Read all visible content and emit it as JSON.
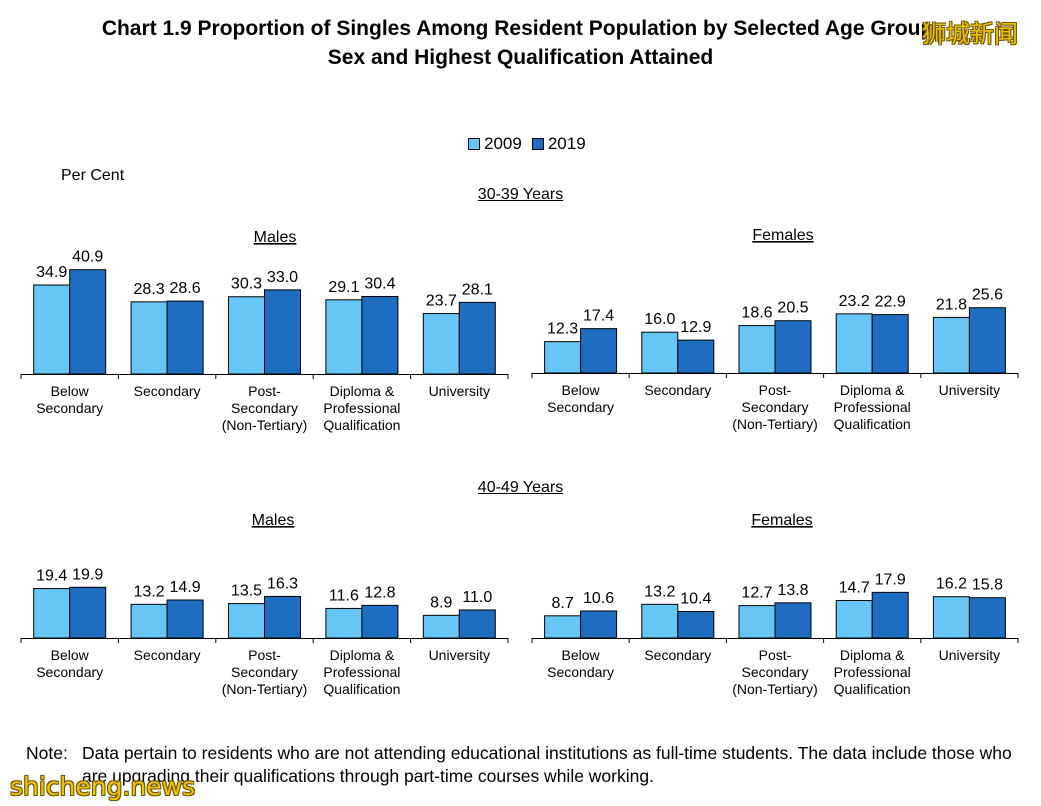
{
  "title_line1": "Chart 1.9  Proportion of Singles Among Resident Population by Selected Age Group,",
  "title_line2": "Sex and Highest Qualification Attained",
  "legend": [
    "2009",
    "2019"
  ],
  "ylabel": "Per Cent",
  "age_groups": [
    "30-39 Years",
    "40-49 Years"
  ],
  "colors": {
    "2009": "#66c6f5",
    "2019": "#1f6dc0"
  },
  "chart_data": [
    {
      "type": "bar",
      "age_group": "30-39 Years",
      "title": "Males",
      "categories": [
        "Below Secondary",
        "Secondary",
        "Post-Secondary (Non-Tertiary)",
        "Diploma & Professional Qualification",
        "University"
      ],
      "series": [
        {
          "name": "2009",
          "values": [
            34.9,
            28.3,
            30.3,
            29.1,
            23.7
          ]
        },
        {
          "name": "2019",
          "values": [
            40.9,
            28.6,
            33.0,
            30.4,
            28.1
          ]
        }
      ]
    },
    {
      "type": "bar",
      "age_group": "30-39 Years",
      "title": "Females",
      "categories": [
        "Below Secondary",
        "Secondary",
        "Post-Secondary (Non-Tertiary)",
        "Diploma & Professional Qualification",
        "University"
      ],
      "series": [
        {
          "name": "2009",
          "values": [
            12.3,
            16.0,
            18.6,
            23.2,
            21.8
          ]
        },
        {
          "name": "2019",
          "values": [
            17.4,
            12.9,
            20.5,
            22.9,
            25.6
          ]
        }
      ]
    },
    {
      "type": "bar",
      "age_group": "40-49 Years",
      "title": "Males",
      "categories": [
        "Below Secondary",
        "Secondary",
        "Post-Secondary (Non-Tertiary)",
        "Diploma & Professional Qualification",
        "University"
      ],
      "series": [
        {
          "name": "2009",
          "values": [
            19.4,
            13.2,
            13.5,
            11.6,
            8.9
          ]
        },
        {
          "name": "2019",
          "values": [
            19.9,
            14.9,
            16.3,
            12.8,
            11.0
          ]
        }
      ]
    },
    {
      "type": "bar",
      "age_group": "40-49 Years",
      "title": "Females",
      "categories": [
        "Below Secondary",
        "Secondary",
        "Post-Secondary (Non-Tertiary)",
        "Diploma & Professional Qualification",
        "University"
      ],
      "series": [
        {
          "name": "2009",
          "values": [
            8.7,
            13.2,
            12.7,
            14.7,
            16.2
          ]
        },
        {
          "name": "2019",
          "values": [
            10.6,
            10.4,
            13.8,
            17.9,
            15.8
          ]
        }
      ]
    }
  ],
  "note_label": "Note:",
  "note_text": "Data pertain to residents who are not attending educational institutions as full-time students. The data include those who are upgrading their qualifications through part-time courses while working.",
  "watermark_cn": "狮城新闻",
  "watermark_en": "shicheng.news"
}
